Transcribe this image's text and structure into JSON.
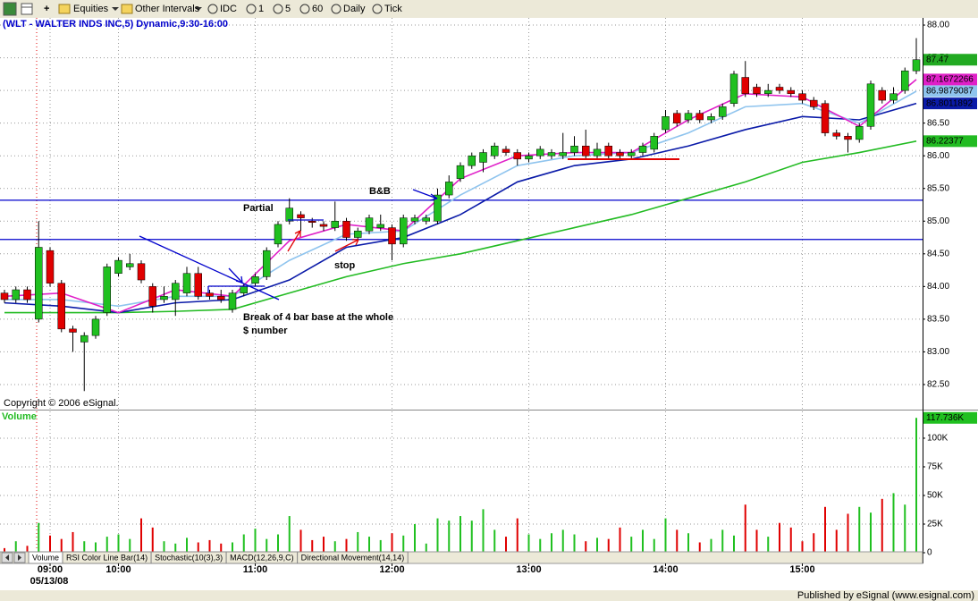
{
  "toolbar": {
    "items": [
      "Equities",
      "Other Intervals",
      "IDC",
      "1",
      "5",
      "60",
      "Daily",
      "Tick"
    ]
  },
  "chart_data": [
    {
      "type": "candlestick",
      "title": "(WLT - WALTER INDS INC,5) Dynamic,9:30-16:00",
      "copyright": "Copyright © 2006 eSignal.",
      "date": "05/13/08",
      "annotations": [
        "Partial",
        "B&B",
        "stop",
        "Break of 4 bar base at the whole",
        "$ number"
      ],
      "categories": [
        null,
        null,
        null,
        null,
        "09:00",
        null,
        null,
        null,
        null,
        null,
        "10:00",
        null,
        null,
        null,
        null,
        null,
        null,
        null,
        null,
        null,
        null,
        null,
        "11:00",
        null,
        null,
        null,
        null,
        null,
        null,
        null,
        null,
        null,
        null,
        null,
        "12:00",
        null,
        null,
        null,
        null,
        null,
        null,
        null,
        null,
        null,
        null,
        null,
        "13:00",
        null,
        null,
        null,
        null,
        null,
        null,
        null,
        null,
        null,
        null,
        null,
        "14:00",
        null,
        null,
        null,
        null,
        null,
        null,
        null,
        null,
        null,
        null,
        null,
        "15:00",
        null,
        null,
        null,
        null,
        null,
        null,
        null,
        null,
        null,
        null
      ],
      "open": [
        83.9,
        83.8,
        83.95,
        83.5,
        84.55,
        84.05,
        83.35,
        83.15,
        83.25,
        83.6,
        84.2,
        84.3,
        84.35,
        84.0,
        83.8,
        83.8,
        83.9,
        84.2,
        83.9,
        83.85,
        83.65,
        83.9,
        84.05,
        84.15,
        84.65,
        85.0,
        85.1,
        85.0,
        84.95,
        84.9,
        85.0,
        84.75,
        84.85,
        84.9,
        84.9,
        84.65,
        85.0,
        85.0,
        85.0,
        85.4,
        85.65,
        85.85,
        85.9,
        86.0,
        86.1,
        86.05,
        85.95,
        86.0,
        86.0,
        86.0,
        86.05,
        86.15,
        86.0,
        86.15,
        86.05,
        86.0,
        86.05,
        86.1,
        86.4,
        86.65,
        86.55,
        86.65,
        86.55,
        86.6,
        86.8,
        87.2,
        87.05,
        86.95,
        87.05,
        87.0,
        86.95,
        86.85,
        86.8,
        86.35,
        86.3,
        86.25,
        86.45,
        87.0,
        86.85,
        87.0,
        87.3
      ],
      "high": [
        83.95,
        84.0,
        84.0,
        85.0,
        84.6,
        84.1,
        83.4,
        83.3,
        83.55,
        84.35,
        84.45,
        84.5,
        84.4,
        84.05,
        84.0,
        84.1,
        84.3,
        84.3,
        83.95,
        83.95,
        83.95,
        84.05,
        84.2,
        84.6,
        85.0,
        85.35,
        85.15,
        85.05,
        85.0,
        85.3,
        85.05,
        84.9,
        85.1,
        85.1,
        84.95,
        85.1,
        85.1,
        85.1,
        85.5,
        85.7,
        85.9,
        86.05,
        86.1,
        86.2,
        86.15,
        86.1,
        86.05,
        86.15,
        86.1,
        86.35,
        86.3,
        86.4,
        86.2,
        86.2,
        86.1,
        86.1,
        86.2,
        86.35,
        86.7,
        86.7,
        86.7,
        86.7,
        86.65,
        86.8,
        87.3,
        87.45,
        87.1,
        87.1,
        87.1,
        87.05,
        87.0,
        86.9,
        86.85,
        86.4,
        86.35,
        86.5,
        87.15,
        87.05,
        87.05,
        87.35,
        87.8
      ],
      "low": [
        83.75,
        83.75,
        83.75,
        83.45,
        84.0,
        83.3,
        83.0,
        82.4,
        83.2,
        83.55,
        84.15,
        84.25,
        84.05,
        83.6,
        83.75,
        83.55,
        83.85,
        83.8,
        83.8,
        83.75,
        83.6,
        83.85,
        84.0,
        84.1,
        84.6,
        84.95,
        84.85,
        84.9,
        84.85,
        84.85,
        84.7,
        84.7,
        84.8,
        84.85,
        84.4,
        84.6,
        84.95,
        84.95,
        84.95,
        85.35,
        85.6,
        85.8,
        85.75,
        85.95,
        86.0,
        85.85,
        85.9,
        85.95,
        85.95,
        85.95,
        86.0,
        85.95,
        85.95,
        85.95,
        85.95,
        85.95,
        86.0,
        86.05,
        86.35,
        86.45,
        86.5,
        86.5,
        86.5,
        86.55,
        86.75,
        86.9,
        86.9,
        86.9,
        86.95,
        86.9,
        86.8,
        86.7,
        86.3,
        86.25,
        86.05,
        86.2,
        86.4,
        86.8,
        86.8,
        86.95,
        87.25
      ],
      "close": [
        83.8,
        83.95,
        83.8,
        84.6,
        84.05,
        83.35,
        83.3,
        83.25,
        83.5,
        84.3,
        84.4,
        84.35,
        84.1,
        83.7,
        83.85,
        84.05,
        84.2,
        83.85,
        83.85,
        83.8,
        83.9,
        84.0,
        84.15,
        84.55,
        84.95,
        85.2,
        85.05,
        84.98,
        84.92,
        85.0,
        84.75,
        84.85,
        85.05,
        84.95,
        84.65,
        85.05,
        85.05,
        85.05,
        85.4,
        85.6,
        85.85,
        86.0,
        86.05,
        86.15,
        86.05,
        85.95,
        86.0,
        86.1,
        86.05,
        86.05,
        86.15,
        86.0,
        86.1,
        86.0,
        86.0,
        86.05,
        86.15,
        86.3,
        86.6,
        86.5,
        86.65,
        86.55,
        86.6,
        86.75,
        87.25,
        86.95,
        86.95,
        87.0,
        87.0,
        86.95,
        86.85,
        86.75,
        86.35,
        86.3,
        86.25,
        86.45,
        87.1,
        86.85,
        86.95,
        87.3,
        87.47
      ],
      "up_color": "#20c020",
      "down_color": "#e00000",
      "close_badge_color": "#22aa22",
      "overlay_x": [
        0,
        5,
        10,
        15,
        20,
        25,
        30,
        35,
        40,
        45,
        50,
        55,
        60,
        65,
        70,
        75,
        80
      ],
      "overlays": [
        {
          "color": "#22bb22",
          "values": [
            83.6,
            83.6,
            83.6,
            83.62,
            83.65,
            83.9,
            84.15,
            84.35,
            84.5,
            84.7,
            84.9,
            85.1,
            85.35,
            85.6,
            85.9,
            86.05,
            86.22377
          ]
        },
        {
          "color": "#0a1aa8",
          "values": [
            83.75,
            83.7,
            83.6,
            83.75,
            83.8,
            84.1,
            84.6,
            84.75,
            85.1,
            85.6,
            85.85,
            85.95,
            86.15,
            86.4,
            86.6,
            86.55,
            86.8011892
          ]
        },
        {
          "color": "#8fc4ee",
          "values": [
            83.8,
            83.8,
            83.7,
            83.85,
            83.85,
            84.4,
            84.8,
            84.85,
            85.4,
            85.85,
            86.0,
            86.05,
            86.35,
            86.75,
            86.8,
            86.5,
            86.9879087
          ]
        },
        {
          "color": "#e020c8",
          "values": [
            83.85,
            83.9,
            83.6,
            83.95,
            83.85,
            84.7,
            84.95,
            84.85,
            85.65,
            86.0,
            86.05,
            86.05,
            86.55,
            86.95,
            86.9,
            86.45,
            87.1672266
          ]
        }
      ],
      "hlines": [
        {
          "value": 85.32,
          "color": "#0000cc"
        },
        {
          "value": 84.72,
          "color": "#0000cc"
        }
      ],
      "ylim": [
        82.13,
        88.11
      ],
      "yticks": [
        {
          "value": 82.5,
          "label": "82.50"
        },
        {
          "value": 83,
          "label": "83.00"
        },
        {
          "value": 83.5,
          "label": "83.50"
        },
        {
          "value": 84,
          "label": "84.00"
        },
        {
          "value": 84.5,
          "label": "84.50"
        },
        {
          "value": 85,
          "label": "85.00"
        },
        {
          "value": 85.5,
          "label": "85.50"
        },
        {
          "value": 86,
          "label": "86.00"
        },
        {
          "value": 86.5,
          "label": "86.50"
        },
        {
          "value": 87,
          "label": "87.00"
        },
        {
          "value": 87.5,
          "label": "87.50"
        },
        {
          "value": 88,
          "label": "88.00"
        }
      ],
      "grid": true
    },
    {
      "type": "bar",
      "title": "Volume",
      "title_color": "#22bb22",
      "values": [
        4000,
        10000,
        6000,
        26000,
        15000,
        12000,
        18000,
        10000,
        9000,
        14000,
        16000,
        12000,
        30000,
        22000,
        10000,
        8000,
        13000,
        9000,
        11000,
        8000,
        9000,
        16000,
        21000,
        12000,
        16000,
        32000,
        20000,
        11000,
        14000,
        10000,
        12000,
        18000,
        14000,
        11000,
        17000,
        15000,
        25000,
        8000,
        30000,
        28000,
        32000,
        28000,
        38000,
        20000,
        14000,
        30000,
        16000,
        12000,
        17000,
        20000,
        16000,
        10000,
        13000,
        12000,
        22000,
        14000,
        20000,
        12000,
        30000,
        20000,
        17000,
        9000,
        12000,
        20000,
        15000,
        42000,
        20000,
        14000,
        26000,
        22000,
        10000,
        17000,
        40000,
        20000,
        34000,
        40000,
        35000,
        47000,
        52000,
        42000,
        117736
      ],
      "value_labels": [
        null,
        null,
        null,
        null,
        null,
        null,
        null,
        null,
        null,
        null,
        null,
        null,
        null,
        null,
        null,
        null,
        null,
        null,
        null,
        null,
        null,
        null,
        null,
        null,
        null,
        null,
        null,
        null,
        null,
        null,
        null,
        null,
        null,
        null,
        null,
        null,
        null,
        null,
        null,
        null,
        null,
        null,
        null,
        null,
        null,
        null,
        null,
        null,
        null,
        null,
        null,
        null,
        null,
        null,
        null,
        null,
        null,
        null,
        null,
        null,
        null,
        null,
        null,
        null,
        null,
        null,
        null,
        null,
        null,
        null,
        null,
        null,
        null,
        null,
        null,
        null,
        null,
        null,
        null,
        null,
        "117.736K"
      ],
      "up_color": "#20c020",
      "down_color": "#e00000",
      "ylim": [
        -7800,
        123400
      ],
      "yticks": [
        0,
        {
          "value": 25000,
          "label": "25K"
        },
        {
          "value": 50000,
          "label": "50K"
        },
        {
          "value": 75000,
          "label": "75K"
        },
        {
          "value": 100000,
          "label": "100K"
        }
      ],
      "grid": true
    }
  ],
  "tabs": [
    "Volume",
    "RSI Color Line Bar(14)",
    "Stochastic(10(3),3)",
    "MACD(12,26,9,C)",
    "Directional Movement(14,14)"
  ],
  "footer": "Published by eSignal (www.esignal.com)"
}
